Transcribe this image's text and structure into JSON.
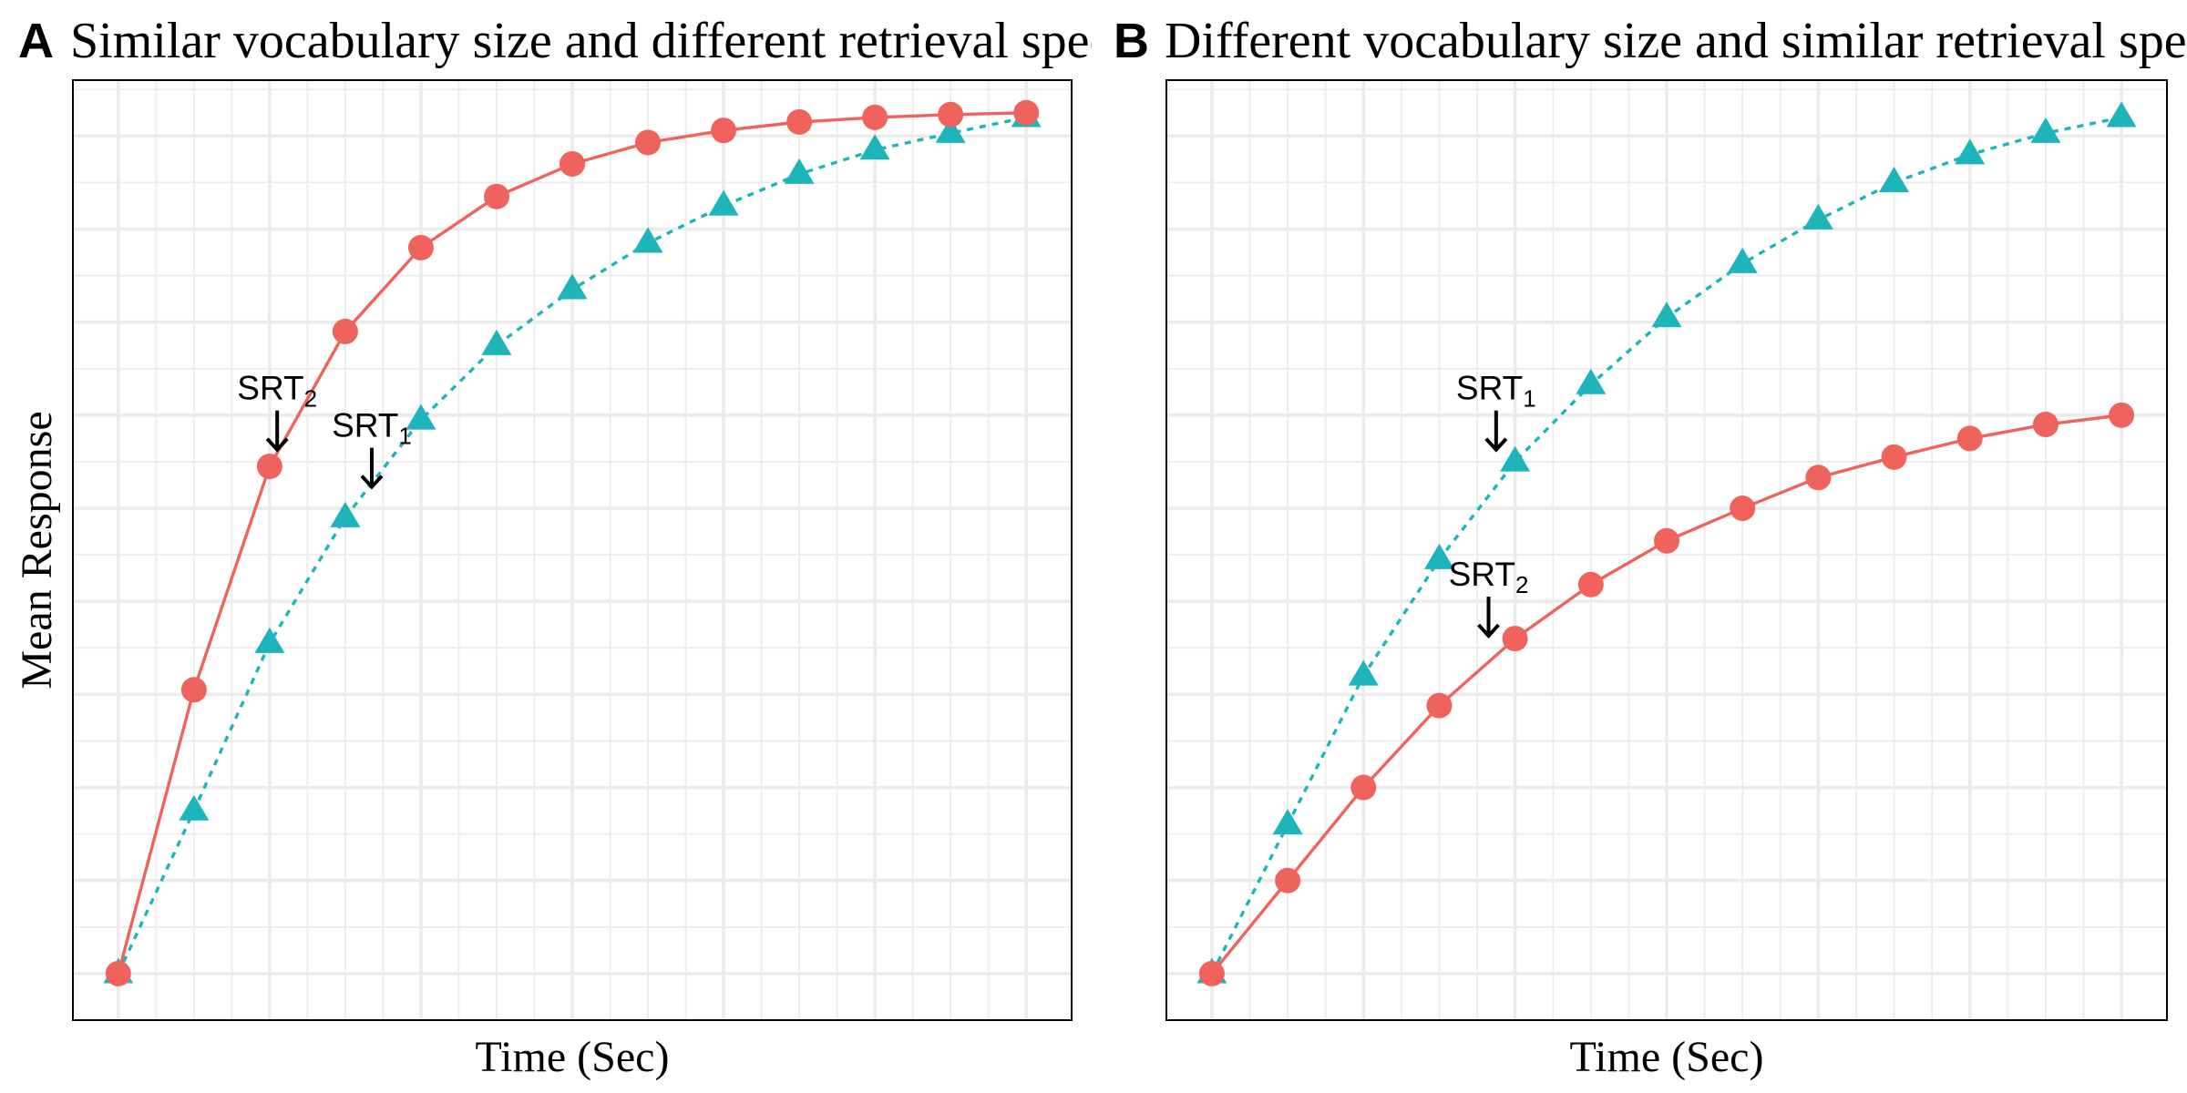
{
  "chart_data": [
    {
      "type": "line",
      "panel": "A",
      "title": "Similar vocabulary size and different retrieval speed",
      "xlabel": "Time (Sec)",
      "ylabel": "Mean Response",
      "grid": true,
      "legend": "none",
      "x": [
        0,
        1,
        2,
        3,
        4,
        5,
        6,
        7,
        8,
        9,
        10,
        11,
        12
      ],
      "xlim": [
        -0.6,
        12.6
      ],
      "ylim": [
        -0.05,
        0.96
      ],
      "series": [
        {
          "marker": "circle",
          "line": "solid",
          "color": "#F0635C",
          "values": [
            0.0,
            0.305,
            0.545,
            0.69,
            0.78,
            0.835,
            0.87,
            0.893,
            0.906,
            0.915,
            0.92,
            0.923,
            0.925
          ]
        },
        {
          "marker": "triangle",
          "line": "dotted",
          "color": "#1EB4BB",
          "values": [
            0.0,
            0.175,
            0.355,
            0.49,
            0.595,
            0.675,
            0.735,
            0.785,
            0.825,
            0.859,
            0.885,
            0.903,
            0.92
          ]
        }
      ],
      "annotations": [
        {
          "text": "SRT",
          "subscript": "2",
          "x": 2.1,
          "y": 0.56
        },
        {
          "text": "SRT",
          "subscript": "1",
          "x": 3.35,
          "y": 0.52
        }
      ]
    },
    {
      "type": "line",
      "panel": "B",
      "title": "Different vocabulary size and similar retrieval speed",
      "xlabel": "Time (Sec)",
      "ylabel": "",
      "grid": true,
      "legend": "none",
      "x": [
        0,
        1,
        2,
        3,
        4,
        5,
        6,
        7,
        8,
        9,
        10,
        11,
        12
      ],
      "xlim": [
        -0.6,
        12.6
      ],
      "ylim": [
        -0.05,
        0.96
      ],
      "series": [
        {
          "marker": "circle",
          "line": "solid",
          "color": "#F0635C",
          "values": [
            0.0,
            0.1,
            0.2,
            0.288,
            0.36,
            0.418,
            0.465,
            0.5,
            0.533,
            0.555,
            0.575,
            0.59,
            0.6
          ]
        },
        {
          "marker": "triangle",
          "line": "dotted",
          "color": "#1EB4BB",
          "values": [
            0.0,
            0.16,
            0.32,
            0.445,
            0.55,
            0.633,
            0.705,
            0.763,
            0.81,
            0.85,
            0.88,
            0.903,
            0.92
          ]
        }
      ],
      "annotations": [
        {
          "text": "SRT",
          "subscript": "1",
          "x": 3.75,
          "y": 0.56
        },
        {
          "text": "SRT",
          "subscript": "2",
          "x": 3.65,
          "y": 0.36
        }
      ]
    }
  ]
}
